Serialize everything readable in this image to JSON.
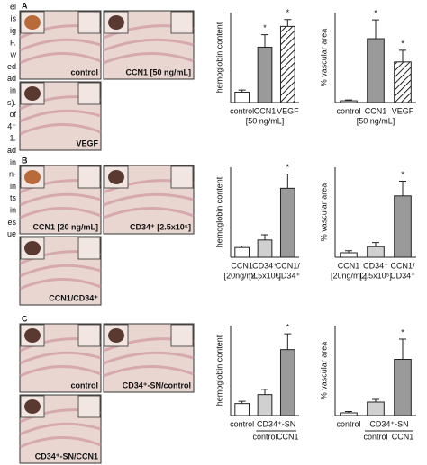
{
  "margin_text": [
    "el",
    "is",
    "ig",
    "F.",
    "w",
    "ed",
    "ad",
    "in",
    "s).",
    "of",
    "4⁺",
    "1.",
    "ad",
    "in",
    "n-",
    "in",
    "ts",
    "in",
    "es",
    "ue"
  ],
  "panels": [
    {
      "letter": "A",
      "photo_labels": [
        "control",
        "CCN1 [50 ng/mL]",
        "VEGF"
      ]
    },
    {
      "letter": "B",
      "photo_labels": [
        "CCN1 [20 ng/mL]",
        "CD34⁺ [2.5x10⁵]",
        "CCN1/CD34⁺"
      ]
    },
    {
      "letter": "C",
      "photo_labels": [
        "control",
        "CD34⁺-SN/control",
        "CD34⁺-SN/CCN1"
      ]
    }
  ],
  "chart_data": [
    {
      "type": "bar",
      "y_label": "hemoglobin content",
      "categories": [
        "control",
        "CCN1",
        "VEGF"
      ],
      "category_notes": [
        null,
        "[50 ng/mL]",
        null
      ],
      "values": [
        1.5,
        8,
        11
      ],
      "errors": [
        0.3,
        1.8,
        1
      ],
      "colors": [
        "#ffffff",
        "#9a9a9a",
        "#ffffff"
      ],
      "hatched": [
        false,
        false,
        true
      ],
      "star": "*",
      "starred": [
        false,
        true,
        true
      ],
      "ylim": [
        0,
        13
      ]
    },
    {
      "type": "bar",
      "y_label": "% vascular area",
      "categories": [
        "control",
        "CCN1",
        "VEGF"
      ],
      "category_notes": [
        null,
        "[50 ng/mL]",
        null
      ],
      "values": [
        0.6,
        22,
        14
      ],
      "errors": [
        0.3,
        6.5,
        4
      ],
      "colors": [
        "#ffffff",
        "#9a9a9a",
        "#ffffff"
      ],
      "hatched": [
        false,
        false,
        true
      ],
      "star": "*",
      "starred": [
        false,
        true,
        true
      ],
      "ylim": [
        0,
        31
      ]
    },
    {
      "type": "bar",
      "y_label": "hemoglobin content",
      "categories": [
        "CCN1",
        "CD34⁺",
        "CCN1/"
      ],
      "category_notes": [
        "[20ng/mL]",
        "[2.5x10⁵]",
        "CD34⁺"
      ],
      "values": [
        1.3,
        2.3,
        9.2
      ],
      "errors": [
        0.2,
        0.7,
        1.9
      ],
      "colors": [
        "#ffffff",
        "#d0d0d0",
        "#9a9a9a"
      ],
      "hatched": [
        false,
        false,
        false
      ],
      "star": "*",
      "starred": [
        false,
        false,
        true
      ],
      "ylim": [
        0,
        12
      ]
    },
    {
      "type": "bar",
      "y_label": "% vascular area",
      "categories": [
        "CCN1",
        "CD34⁺",
        "CCN1/"
      ],
      "category_notes": [
        "[20ng/mL]",
        "[2.5x10⁵]",
        "CD34⁺"
      ],
      "values": [
        1.1,
        2.6,
        15
      ],
      "errors": [
        0.5,
        1,
        3.6
      ],
      "colors": [
        "#ffffff",
        "#d0d0d0",
        "#9a9a9a"
      ],
      "hatched": [
        false,
        false,
        false
      ],
      "star": "*",
      "starred": [
        false,
        false,
        true
      ],
      "ylim": [
        0,
        22
      ]
    },
    {
      "type": "bar",
      "y_label": "hemoglobin content",
      "categories": [
        "control",
        "control",
        "CCN1"
      ],
      "groups": [
        {
          "label": "CD34⁺-SN",
          "categories": [
            1,
            2
          ]
        }
      ],
      "values": [
        1.6,
        2.8,
        8.8
      ],
      "errors": [
        0.3,
        0.7,
        2.1
      ],
      "colors": [
        "#ffffff",
        "#d0d0d0",
        "#9a9a9a"
      ],
      "hatched": [
        false,
        false,
        false
      ],
      "star": "*",
      "starred": [
        false,
        false,
        true
      ],
      "ylim": [
        0,
        12
      ]
    },
    {
      "type": "bar",
      "y_label": "% vascular area",
      "categories": [
        "control",
        "control",
        "CCN1"
      ],
      "groups": [
        {
          "label": "CD34⁺-SN",
          "categories": [
            1,
            2
          ]
        }
      ],
      "values": [
        0.6,
        3,
        12.5
      ],
      "errors": [
        0.3,
        0.6,
        4.5
      ],
      "colors": [
        "#ffffff",
        "#d0d0d0",
        "#9a9a9a"
      ],
      "hatched": [
        false,
        false,
        false
      ],
      "star": "*",
      "starred": [
        false,
        false,
        true
      ],
      "ylim": [
        0,
        20
      ]
    }
  ]
}
